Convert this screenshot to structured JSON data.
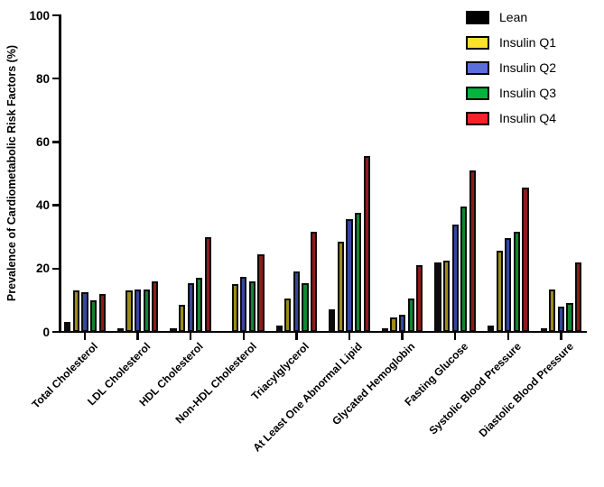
{
  "chart_data": {
    "type": "bar",
    "title": "",
    "xlabel": "",
    "ylabel": "Prevalence of Cardiometabolic Risk Factors (%)",
    "ylim": [
      0,
      100
    ],
    "yticks": [
      0,
      20,
      40,
      60,
      80,
      100
    ],
    "grid": false,
    "legend_position": "top-right",
    "categories": [
      "Total Cholesterol",
      "LDL Cholesterol",
      "HDL Cholesterol",
      "Non-HDL Cholesterol",
      "Triacylglycerol",
      "At Least One Abnormal Lipid",
      "Glycated Hemoglobin",
      "Fasting Glucose",
      "Systolic Blood Pressure",
      "Diastolic Blood Pressure"
    ],
    "series": [
      {
        "name": "Lean",
        "legend_color": "#000000",
        "bar_color": "#0b0b0b",
        "values": [
          3,
          1,
          1,
          0,
          2,
          7,
          1,
          22,
          2,
          1
        ]
      },
      {
        "name": "Insulin Q1",
        "legend_color": "#fbe02c",
        "bar_color": "#9d8c17",
        "values": [
          13,
          13,
          8.5,
          15,
          10.5,
          28.5,
          4.5,
          22.5,
          25.5,
          13.5
        ]
      },
      {
        "name": "Insulin Q2",
        "legend_color": "#5b6edc",
        "bar_color": "#35479e",
        "values": [
          12.5,
          13.5,
          15.5,
          17.5,
          19,
          35.5,
          5.5,
          34,
          29.5,
          8
        ]
      },
      {
        "name": "Insulin Q3",
        "legend_color": "#00b43c",
        "bar_color": "#13862f",
        "values": [
          10,
          13.5,
          17,
          16,
          15.5,
          37.5,
          10.5,
          39.5,
          31.5,
          9
        ]
      },
      {
        "name": "Insulin Q4",
        "legend_color": "#f52328",
        "bar_color": "#8f1b1b",
        "values": [
          12,
          16,
          30,
          24.5,
          31.5,
          55.5,
          21,
          51,
          45.5,
          22
        ]
      }
    ]
  }
}
